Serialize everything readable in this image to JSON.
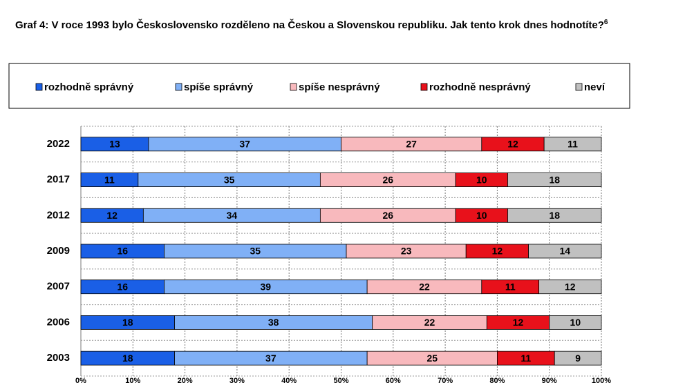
{
  "chart_data": {
    "type": "stacked-bar-horizontal",
    "title": "Graf 4: V roce 1993 bylo Československo rozděleno na Českou a Slovenskou republiku. Jak tento krok dnes hodnotíte?",
    "title_note": "6",
    "categories": [
      "2022",
      "2017",
      "2012",
      "2009",
      "2007",
      "2006",
      "2003"
    ],
    "series": [
      {
        "name": "rozhodně správný",
        "color": "#1a5fe6",
        "values": [
          13,
          11,
          12,
          16,
          16,
          18,
          18
        ]
      },
      {
        "name": "spíše správný",
        "color": "#80b0f6",
        "values": [
          37,
          35,
          34,
          35,
          39,
          38,
          37
        ]
      },
      {
        "name": "spíše nesprávný",
        "color": "#f8b9bd",
        "values": [
          27,
          26,
          26,
          23,
          22,
          22,
          25
        ]
      },
      {
        "name": "rozhodně nesprávný",
        "color": "#e8111b",
        "values": [
          12,
          10,
          10,
          12,
          11,
          12,
          11
        ]
      },
      {
        "name": "neví",
        "color": "#c0c0c0",
        "values": [
          11,
          18,
          18,
          14,
          12,
          10,
          9
        ]
      }
    ],
    "xlim": [
      0,
      100
    ],
    "xticks": [
      {
        "value": 0,
        "label": "0%"
      },
      {
        "value": 10,
        "label": "10%"
      },
      {
        "value": 20,
        "label": "20%"
      },
      {
        "value": 30,
        "label": "30%"
      },
      {
        "value": 40,
        "label": "40%"
      },
      {
        "value": 50,
        "label": "50%"
      },
      {
        "value": 60,
        "label": "60%"
      },
      {
        "value": 70,
        "label": "70%"
      },
      {
        "value": 80,
        "label": "80%"
      },
      {
        "value": 90,
        "label": "90%"
      },
      {
        "value": 100,
        "label": "100%"
      }
    ],
    "grid": true,
    "legend": "top"
  }
}
